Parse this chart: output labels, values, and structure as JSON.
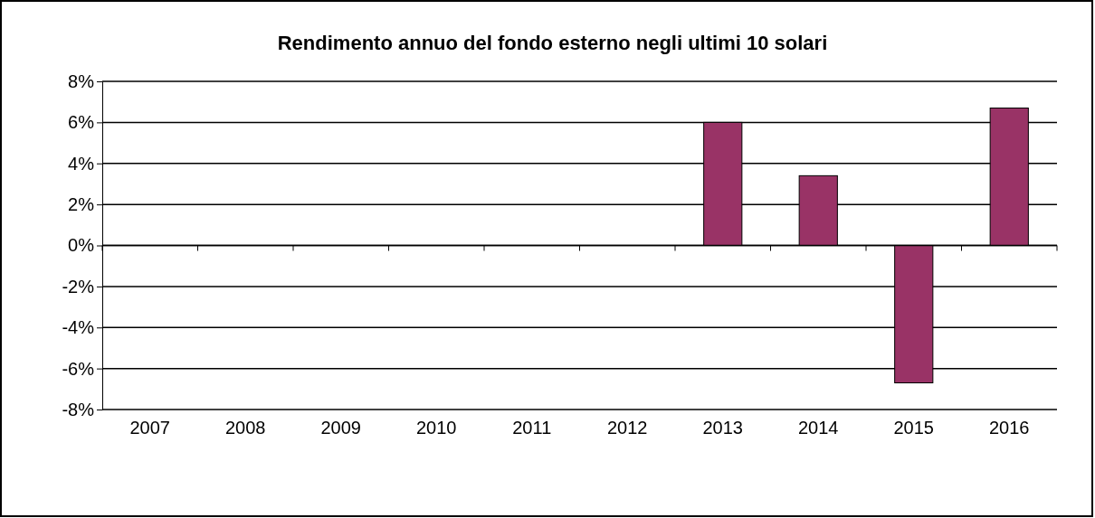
{
  "chart_data": {
    "type": "bar",
    "title": "Rendimento annuo del fondo esterno negli ultimi 10 solari",
    "categories": [
      "2007",
      "2008",
      "2009",
      "2010",
      "2011",
      "2012",
      "2013",
      "2014",
      "2015",
      "2016"
    ],
    "series": [
      {
        "color": "#993366",
        "values": [
          null,
          null,
          null,
          null,
          null,
          null,
          6.0,
          3.4,
          -6.7,
          6.7
        ]
      }
    ],
    "ylim": [
      -8,
      8
    ],
    "yticks": [
      {
        "value": -8,
        "label": "-8%"
      },
      {
        "value": -6,
        "label": "-6%"
      },
      {
        "value": -4,
        "label": "-4%"
      },
      {
        "value": -2,
        "label": "-2%"
      },
      {
        "value": 0,
        "label": "0%"
      },
      {
        "value": 2,
        "label": "2%"
      },
      {
        "value": 4,
        "label": "4%"
      },
      {
        "value": 6,
        "label": "6%"
      },
      {
        "value": 8,
        "label": "8%"
      }
    ],
    "grid": "y"
  }
}
